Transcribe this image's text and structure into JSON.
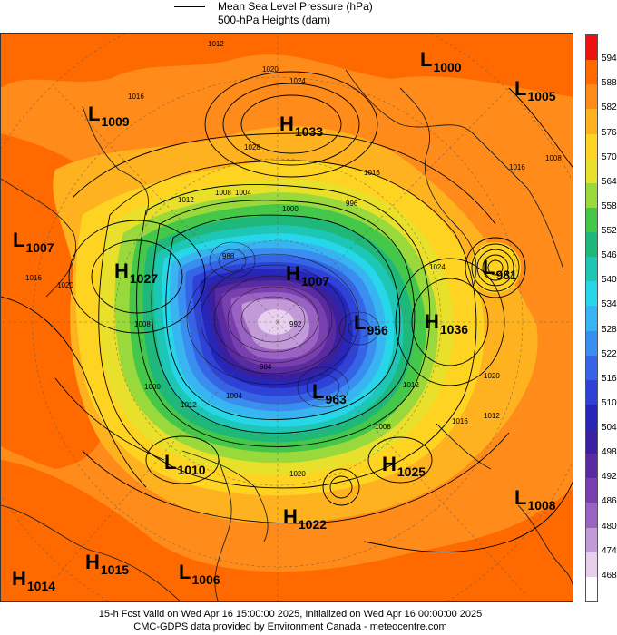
{
  "legend": {
    "mslp_label": "Mean Sea Level Pressure (hPa)",
    "heights_label": "500-hPa Heights (dam)"
  },
  "centers": [
    {
      "type": "L",
      "value": "1000"
    },
    {
      "type": "L",
      "value": "1005"
    },
    {
      "type": "L",
      "value": "1009"
    },
    {
      "type": "H",
      "value": "1033"
    },
    {
      "type": "L",
      "value": "1007"
    },
    {
      "type": "H",
      "value": "1027"
    },
    {
      "type": "H",
      "value": "1007"
    },
    {
      "type": "L",
      "value": "981"
    },
    {
      "type": "L",
      "value": "956"
    },
    {
      "type": "H",
      "value": "1036"
    },
    {
      "type": "L",
      "value": "963"
    },
    {
      "type": "L",
      "value": "1010"
    },
    {
      "type": "H",
      "value": "1025"
    },
    {
      "type": "L",
      "value": "1008"
    },
    {
      "type": "H",
      "value": "1022"
    },
    {
      "type": "H",
      "value": "1014"
    },
    {
      "type": "H",
      "value": "1015"
    },
    {
      "type": "L",
      "value": "1006"
    }
  ],
  "isobar_labels": [
    "1012",
    "1020",
    "1024",
    "1016",
    "1028",
    "1012",
    "1016",
    "1008",
    "1004",
    "1000",
    "1008",
    "1020",
    "1016",
    "1012",
    "1004",
    "1000",
    "1008",
    "1020",
    "1012",
    "1016",
    "1024",
    "1020",
    "1016",
    "1008",
    "1012",
    "996",
    "992",
    "988",
    "984"
  ],
  "colorbar": {
    "levels": [
      "594",
      "588",
      "582",
      "576",
      "570",
      "564",
      "558",
      "552",
      "546",
      "540",
      "534",
      "528",
      "522",
      "516",
      "510",
      "504",
      "498",
      "492",
      "486",
      "480",
      "474",
      "468"
    ],
    "colors": [
      "#ee1111",
      "#ff6a00",
      "#ff8c1a",
      "#ffb21f",
      "#ffd322",
      "#e8e02a",
      "#9ad93b",
      "#45c84a",
      "#1fb87a",
      "#1ec6b6",
      "#27d6e8",
      "#38b4f0",
      "#3a8ef0",
      "#3565e6",
      "#2e42d8",
      "#2626b8",
      "#3a1f9e",
      "#5a2aa0",
      "#7a3fae",
      "#9a62c2",
      "#c29ad8",
      "#e6d0ee",
      "#ffffff"
    ]
  },
  "footer": {
    "line1": "15-h Fcst Valid on Wed Apr 16 15:00:00 2025, Initialized on Wed Apr 16 00:00:00 2025",
    "line2": "CMC-GDPS data provided by Environment Canada - meteocentre.com"
  }
}
